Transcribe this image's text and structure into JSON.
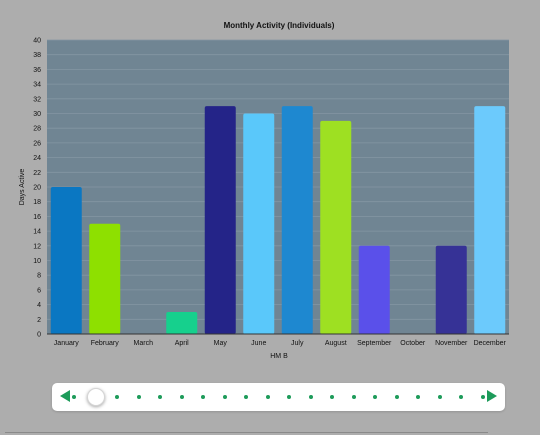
{
  "chart_data": {
    "type": "bar",
    "title": "Monthly Activity (Individuals)",
    "xlabel": "HM B",
    "ylabel": "Days Active",
    "ylim": [
      0,
      40
    ],
    "ytick_step": 2,
    "grid": true,
    "categories": [
      "January",
      "February",
      "March",
      "April",
      "May",
      "June",
      "July",
      "August",
      "September",
      "October",
      "November",
      "December"
    ],
    "values": [
      20,
      15,
      0,
      3,
      31,
      30,
      31,
      29,
      12,
      0,
      12,
      31
    ],
    "colors": [
      "#0a77c2",
      "#8ee000",
      "#8ee000",
      "#16d08d",
      "#242488",
      "#5ac8fa",
      "#1e88d0",
      "#9ee022",
      "#5a50ea",
      "#5a50ea",
      "#363296",
      "#6ccafc"
    ],
    "plot_background": "#708593",
    "grid_color": "#8496a3"
  },
  "slider": {
    "prev_icon": "arrow-left-icon",
    "next_icon": "arrow-right-icon",
    "steps": 20,
    "position": 1,
    "accent_color": "#1d9b5a"
  }
}
